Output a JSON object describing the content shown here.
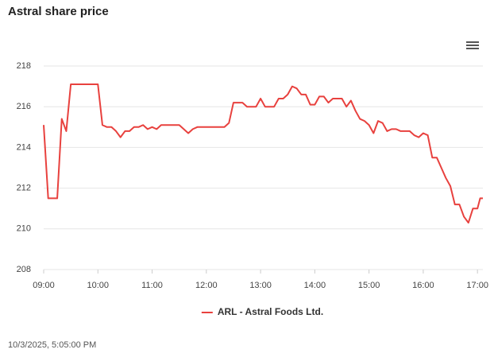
{
  "chart_data": {
    "type": "line",
    "title": "Astral share price",
    "x": [
      "09:00",
      "09:05",
      "09:10",
      "09:15",
      "09:20",
      "09:25",
      "09:30",
      "09:35",
      "09:40",
      "09:45",
      "09:50",
      "09:55",
      "10:00",
      "10:05",
      "10:10",
      "10:15",
      "10:20",
      "10:25",
      "10:30",
      "10:35",
      "10:40",
      "10:45",
      "10:50",
      "10:55",
      "11:00",
      "11:05",
      "11:10",
      "11:15",
      "11:20",
      "11:25",
      "11:30",
      "11:35",
      "11:40",
      "11:45",
      "11:50",
      "11:55",
      "12:00",
      "12:05",
      "12:10",
      "12:15",
      "12:20",
      "12:25",
      "12:30",
      "12:35",
      "12:40",
      "12:45",
      "12:50",
      "12:55",
      "13:00",
      "13:05",
      "13:10",
      "13:15",
      "13:20",
      "13:25",
      "13:30",
      "13:35",
      "13:40",
      "13:45",
      "13:50",
      "13:55",
      "14:00",
      "14:05",
      "14:10",
      "14:15",
      "14:20",
      "14:25",
      "14:30",
      "14:35",
      "14:40",
      "14:45",
      "14:50",
      "14:55",
      "15:00",
      "15:05",
      "15:10",
      "15:15",
      "15:20",
      "15:25",
      "15:30",
      "15:35",
      "15:40",
      "15:45",
      "15:50",
      "15:55",
      "16:00",
      "16:05",
      "16:10",
      "16:15",
      "16:20",
      "16:25",
      "16:30",
      "16:35",
      "16:40",
      "16:45",
      "16:50",
      "16:55",
      "17:00",
      "17:03",
      "17:06"
    ],
    "series": [
      {
        "name": "ARL - Astral Foods Ltd.",
        "color": "#e8413e",
        "values": [
          215.1,
          211.5,
          211.5,
          211.5,
          215.4,
          214.8,
          217.1,
          217.1,
          217.1,
          217.1,
          217.1,
          217.1,
          217.1,
          215.1,
          215.0,
          215.0,
          214.8,
          214.5,
          214.8,
          214.8,
          215.0,
          215.0,
          215.1,
          214.9,
          215.0,
          214.9,
          215.1,
          215.1,
          215.1,
          215.1,
          215.1,
          214.9,
          214.7,
          214.9,
          215.0,
          215.0,
          215.0,
          215.0,
          215.0,
          215.0,
          215.0,
          215.2,
          216.2,
          216.2,
          216.2,
          216.0,
          216.0,
          216.0,
          216.4,
          216.0,
          216.0,
          216.0,
          216.4,
          216.4,
          216.6,
          217.0,
          216.9,
          216.6,
          216.6,
          216.1,
          216.1,
          216.5,
          216.5,
          216.2,
          216.4,
          216.4,
          216.4,
          216.0,
          216.3,
          215.8,
          215.4,
          215.3,
          215.1,
          214.7,
          215.3,
          215.2,
          214.8,
          214.9,
          214.9,
          214.8,
          214.8,
          214.8,
          214.6,
          214.5,
          214.7,
          214.6,
          213.5,
          213.5,
          213.0,
          212.5,
          212.1,
          211.2,
          211.2,
          210.6,
          210.3,
          211.0,
          211.0,
          211.5,
          211.5
        ]
      }
    ],
    "xlim": [
      "09:00",
      "17:06"
    ],
    "xticks": [
      "09:00",
      "10:00",
      "11:00",
      "12:00",
      "13:00",
      "14:00",
      "15:00",
      "16:00",
      "17:00"
    ],
    "ylim": [
      208,
      218
    ],
    "yticks": [
      208,
      210,
      212,
      214,
      216,
      218
    ],
    "grid": true,
    "legend": "bottom",
    "timestamp": "10/3/2025, 5:05:00 PM"
  }
}
